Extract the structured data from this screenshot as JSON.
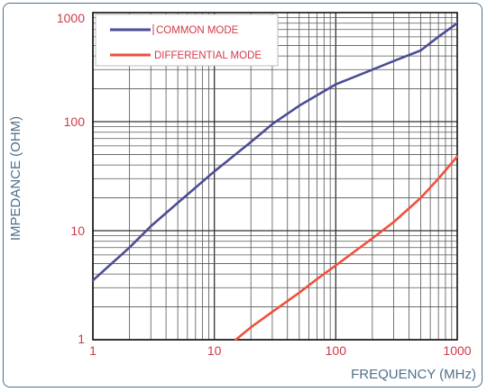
{
  "chart_data": {
    "type": "line",
    "title": "",
    "xlabel": "FREQUENCY (MHz)",
    "ylabel": "IMPEDANCE (OHM)",
    "xscale": "log",
    "yscale": "log",
    "xlim": [
      1,
      1000
    ],
    "ylim": [
      1,
      1000
    ],
    "grid": true,
    "legend_position": "top-left",
    "x_ticks": [
      "1",
      "10",
      "100",
      "1000"
    ],
    "y_ticks": [
      "1",
      "10",
      "100",
      "1000"
    ],
    "series": [
      {
        "name": "COMMON MODE",
        "color": "#4b4d96",
        "x": [
          1,
          2,
          3,
          5,
          10,
          20,
          30,
          50,
          100,
          200,
          300,
          500,
          700,
          1000
        ],
        "y": [
          3.5,
          7,
          11,
          18,
          35,
          65,
          95,
          140,
          220,
          300,
          360,
          450,
          600,
          800
        ]
      },
      {
        "name": "DIFFERENTIAL MODE",
        "color": "#f0503c",
        "x": [
          15,
          20,
          30,
          50,
          70,
          100,
          200,
          300,
          500,
          700,
          1000
        ],
        "y": [
          1,
          1.3,
          1.8,
          2.7,
          3.6,
          4.8,
          8.5,
          12,
          20,
          30,
          48
        ]
      }
    ]
  }
}
